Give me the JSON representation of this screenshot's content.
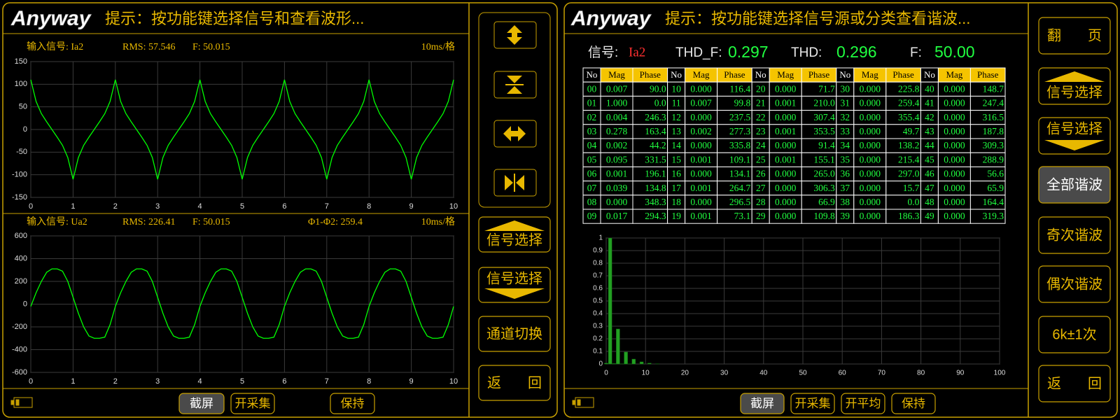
{
  "chart_data": [
    {
      "type": "line",
      "title": "输入信号: Ia2",
      "annotations": [
        "RMS: 57.546",
        "F: 50.015",
        "10ms/格"
      ],
      "color": "#00ff00",
      "x": [
        0,
        0.125,
        0.25,
        0.375,
        0.5,
        0.625,
        0.75,
        0.875,
        1,
        1.125,
        1.25,
        1.375,
        1.5,
        1.625,
        1.75,
        1.875,
        2,
        2.125,
        2.25,
        2.375,
        2.5,
        2.625,
        2.75,
        2.875,
        3,
        3.125,
        3.25,
        3.375,
        3.5,
        3.625,
        3.75,
        3.875,
        4,
        4.125,
        4.25,
        4.375,
        4.5,
        4.625,
        4.75,
        4.875,
        5,
        5.125,
        5.25,
        5.375,
        5.5,
        5.625,
        5.75,
        5.875,
        6,
        6.125,
        6.25,
        6.375,
        6.5,
        6.625,
        6.75,
        6.875,
        7,
        7.125,
        7.25,
        7.375,
        7.5,
        7.625,
        7.75,
        7.875,
        8,
        8.125,
        8.25,
        8.375,
        8.5,
        8.625,
        8.75,
        8.875,
        9,
        9.125,
        9.25,
        9.375,
        9.5,
        9.625,
        9.75,
        9.875,
        10
      ],
      "values": [
        110,
        62,
        35,
        17,
        0,
        -17,
        -35,
        -62,
        -110,
        -62,
        -35,
        -17,
        0,
        17,
        35,
        62,
        110,
        62,
        35,
        17,
        0,
        -17,
        -35,
        -62,
        -110,
        -62,
        -35,
        -17,
        0,
        17,
        35,
        62,
        110,
        62,
        35,
        17,
        0,
        -17,
        -35,
        -62,
        -110,
        -62,
        -35,
        -17,
        0,
        17,
        35,
        62,
        110,
        62,
        35,
        17,
        0,
        -17,
        -35,
        -62,
        -110,
        -62,
        -35,
        -17,
        0,
        17,
        35,
        62,
        110,
        62,
        35,
        17,
        0,
        -17,
        -35,
        -62,
        -110,
        -62,
        -35,
        -17,
        0,
        17,
        35,
        62,
        110
      ],
      "xlim": [
        0,
        10
      ],
      "xticks": [
        0,
        1,
        2,
        3,
        4,
        5,
        6,
        7,
        8,
        9,
        10
      ],
      "ylim": [
        -150,
        150
      ],
      "yticks": [
        -150,
        -100,
        -50,
        0,
        50,
        100,
        150
      ],
      "grid": true
    },
    {
      "type": "line",
      "title": "输入信号: Ua2",
      "annotations": [
        "RMS: 226.41",
        "F: 50.015",
        "Φ1-Φ2: 259.4",
        "10ms/格"
      ],
      "color": "#00ff00",
      "x": [
        0,
        0.125,
        0.25,
        0.375,
        0.5,
        0.625,
        0.75,
        0.875,
        1,
        1.125,
        1.25,
        1.375,
        1.5,
        1.625,
        1.75,
        1.875,
        2,
        2.125,
        2.25,
        2.375,
        2.5,
        2.625,
        2.75,
        2.875,
        3,
        3.125,
        3.25,
        3.375,
        3.5,
        3.625,
        3.75,
        3.875,
        4,
        4.125,
        4.25,
        4.375,
        4.5,
        4.625,
        4.75,
        4.875,
        5,
        5.125,
        5.25,
        5.375,
        5.5,
        5.625,
        5.75,
        5.875,
        6,
        6.125,
        6.25,
        6.375,
        6.5,
        6.625,
        6.75,
        6.875,
        7,
        7.125,
        7.25,
        7.375,
        7.5,
        7.625,
        7.75,
        7.875,
        8,
        8.125,
        8.25,
        8.375,
        8.5,
        8.625,
        8.75,
        8.875,
        9,
        9.125,
        9.25,
        9.375,
        9.5,
        9.625,
        9.75,
        9.875,
        10
      ],
      "values": [
        -20,
        100,
        200,
        280,
        310,
        310,
        290,
        200,
        60,
        -80,
        -200,
        -280,
        -300,
        -300,
        -290,
        -180,
        -20,
        100,
        200,
        280,
        310,
        310,
        290,
        200,
        60,
        -80,
        -200,
        -280,
        -300,
        -300,
        -290,
        -180,
        -20,
        100,
        200,
        280,
        310,
        310,
        290,
        200,
        60,
        -80,
        -200,
        -280,
        -300,
        -300,
        -290,
        -180,
        -20,
        100,
        200,
        280,
        310,
        310,
        290,
        200,
        60,
        -80,
        -200,
        -280,
        -300,
        -300,
        -290,
        -180,
        -20,
        100,
        200,
        280,
        310,
        310,
        290,
        200,
        60,
        -80,
        -200,
        -280,
        -300,
        -300,
        -290,
        -180,
        -20
      ],
      "xlim": [
        0,
        10
      ],
      "xticks": [
        0,
        1,
        2,
        3,
        4,
        5,
        6,
        7,
        8,
        9,
        10
      ],
      "ylim": [
        -600,
        600
      ],
      "yticks": [
        -600,
        -400,
        -200,
        0,
        200,
        400,
        600
      ],
      "grid": true
    },
    {
      "type": "bar",
      "color": "#22a022",
      "x": [
        0,
        1,
        2,
        3,
        4,
        5,
        6,
        7,
        8,
        9,
        10,
        11,
        12,
        13
      ],
      "values": [
        0.007,
        1,
        0.004,
        0.278,
        0.002,
        0.095,
        0.001,
        0.039,
        0,
        0.017,
        0,
        0.007,
        0,
        0.002
      ],
      "xlim": [
        0,
        100
      ],
      "xticks": [
        0,
        10,
        20,
        30,
        40,
        50,
        60,
        70,
        80,
        90,
        100
      ],
      "ylim": [
        0,
        1
      ],
      "yticks": [
        0,
        0.1,
        0.2,
        0.3,
        0.4,
        0.5,
        0.6,
        0.7,
        0.8,
        0.9,
        1
      ],
      "grid": true
    }
  ],
  "left": {
    "logo": "Anyway",
    "hint": "提示：按功能键选择信号和查看波形...",
    "buttons": [
      "信号选择",
      "信号选择",
      "通道切换",
      "返 回"
    ],
    "toolbar": [
      "截屏",
      "开采集",
      "保持"
    ]
  },
  "right": {
    "logo": "Anyway",
    "hint": "提示：按功能键选择信号源或分类查看谐波...",
    "info": {
      "signal_label": "信号:",
      "signal": "Ia2",
      "thd_f_label": "THD_F:",
      "thd_f": "0.297",
      "thd_label": "THD:",
      "thd": "0.296",
      "f_label": "F:",
      "f": "50.00"
    },
    "table": {
      "header": [
        "No",
        "Mag",
        "Phase",
        "No",
        "Mag",
        "Phase",
        "No",
        "Mag",
        "Phase",
        "No",
        "Mag",
        "Phase",
        "No",
        "Mag",
        "Phase"
      ],
      "rows": [
        [
          "00",
          "0.007",
          "90.0",
          "10",
          "0.000",
          "116.4",
          "20",
          "0.000",
          "71.7",
          "30",
          "0.000",
          "225.8",
          "40",
          "0.000",
          "148.7"
        ],
        [
          "01",
          "1.000",
          "0.0",
          "11",
          "0.007",
          "99.8",
          "21",
          "0.001",
          "210.0",
          "31",
          "0.000",
          "259.4",
          "41",
          "0.000",
          "247.4"
        ],
        [
          "02",
          "0.004",
          "246.3",
          "12",
          "0.000",
          "237.5",
          "22",
          "0.000",
          "307.4",
          "32",
          "0.000",
          "355.4",
          "42",
          "0.000",
          "316.5"
        ],
        [
          "03",
          "0.278",
          "163.4",
          "13",
          "0.002",
          "277.3",
          "23",
          "0.001",
          "353.5",
          "33",
          "0.000",
          "49.7",
          "43",
          "0.000",
          "187.8"
        ],
        [
          "04",
          "0.002",
          "44.2",
          "14",
          "0.000",
          "335.8",
          "24",
          "0.000",
          "91.4",
          "34",
          "0.000",
          "138.2",
          "44",
          "0.000",
          "309.3"
        ],
        [
          "05",
          "0.095",
          "331.5",
          "15",
          "0.001",
          "109.1",
          "25",
          "0.001",
          "155.1",
          "35",
          "0.000",
          "215.4",
          "45",
          "0.000",
          "288.9"
        ],
        [
          "06",
          "0.001",
          "196.1",
          "16",
          "0.000",
          "134.1",
          "26",
          "0.000",
          "265.0",
          "36",
          "0.000",
          "297.0",
          "46",
          "0.000",
          "56.6"
        ],
        [
          "07",
          "0.039",
          "134.8",
          "17",
          "0.001",
          "264.7",
          "27",
          "0.000",
          "306.3",
          "37",
          "0.000",
          "15.7",
          "47",
          "0.000",
          "65.9"
        ],
        [
          "08",
          "0.000",
          "348.3",
          "18",
          "0.000",
          "296.5",
          "28",
          "0.000",
          "66.9",
          "38",
          "0.000",
          "0.0",
          "48",
          "0.000",
          "164.4"
        ],
        [
          "09",
          "0.017",
          "294.3",
          "19",
          "0.001",
          "73.1",
          "29",
          "0.000",
          "109.8",
          "39",
          "0.000",
          "186.3",
          "49",
          "0.000",
          "319.3"
        ]
      ]
    },
    "buttons": [
      "翻 页",
      "信号选择",
      "信号选择",
      "全部谐波",
      "奇次谐波",
      "偶次谐波",
      "6k±1次",
      "返 回"
    ],
    "toolbar": [
      "截屏",
      "开采集",
      "开平均",
      "保持"
    ]
  }
}
